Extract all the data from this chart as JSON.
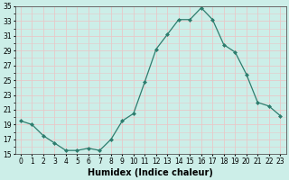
{
  "x": [
    0,
    1,
    2,
    3,
    4,
    5,
    6,
    7,
    8,
    9,
    10,
    11,
    12,
    13,
    14,
    15,
    16,
    17,
    18,
    19,
    20,
    21,
    22,
    23
  ],
  "y": [
    19.5,
    19.0,
    17.5,
    16.5,
    15.5,
    15.5,
    15.8,
    15.5,
    17.0,
    19.5,
    20.5,
    24.8,
    29.2,
    31.2,
    33.2,
    33.2,
    34.8,
    33.2,
    29.8,
    28.8,
    25.8,
    22.0,
    21.5,
    20.2
  ],
  "line_color": "#2d7d6e",
  "marker": "D",
  "markersize": 2.0,
  "linewidth": 0.9,
  "xlabel": "Humidex (Indice chaleur)",
  "xlabel_fontsize": 7,
  "bg_color": "#cceee8",
  "grid_color": "#e8c8c8",
  "ylim": [
    15,
    35
  ],
  "yticks": [
    15,
    17,
    19,
    21,
    23,
    25,
    27,
    29,
    31,
    33,
    35
  ],
  "xticks": [
    0,
    1,
    2,
    3,
    4,
    5,
    6,
    7,
    8,
    9,
    10,
    11,
    12,
    13,
    14,
    15,
    16,
    17,
    18,
    19,
    20,
    21,
    22,
    23
  ],
  "tick_labelsize": 5.5
}
